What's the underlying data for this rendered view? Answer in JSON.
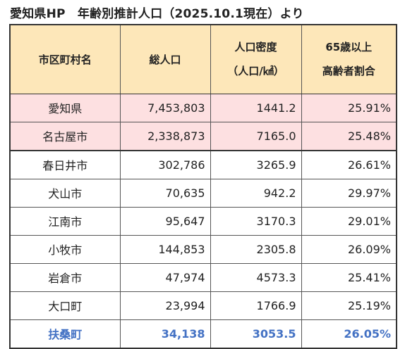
{
  "title": "愛知県HP　年齢別推計人口（2025.10.1現在）より",
  "headers": {
    "col1": "市区町村名",
    "col2": "総人口",
    "col3_line1": "人口密度",
    "col3_line2": "（人口/㎢）",
    "col4_line1": "65歳以上",
    "col4_line2": "高齢者割合"
  },
  "rows": [
    {
      "name": "愛知県",
      "population": "7,453,803",
      "density": "1441.2",
      "elderly": "25.91%"
    },
    {
      "name": "名古屋市",
      "population": "2,338,873",
      "density": "7165.0",
      "elderly": "25.48%"
    },
    {
      "name": "春日井市",
      "population": "302,786",
      "density": "3265.9",
      "elderly": "26.61%"
    },
    {
      "name": "犬山市",
      "population": "70,635",
      "density": "942.2",
      "elderly": "29.97%"
    },
    {
      "name": "江南市",
      "population": "95,647",
      "density": "3170.3",
      "elderly": "29.01%"
    },
    {
      "name": "小牧市",
      "population": "144,853",
      "density": "2305.8",
      "elderly": "26.09%"
    },
    {
      "name": "岩倉市",
      "population": "47,974",
      "density": "4573.3",
      "elderly": "25.41%"
    },
    {
      "name": "大口町",
      "population": "23,994",
      "density": "1766.9",
      "elderly": "25.19%"
    },
    {
      "name": "扶桑町",
      "population": "34,138",
      "density": "3053.5",
      "elderly": "26.05%"
    }
  ],
  "colors": {
    "header_bg": "#fde7b9",
    "pref_row_bg": "#fde0e1",
    "highlight_text": "#4472c4"
  }
}
